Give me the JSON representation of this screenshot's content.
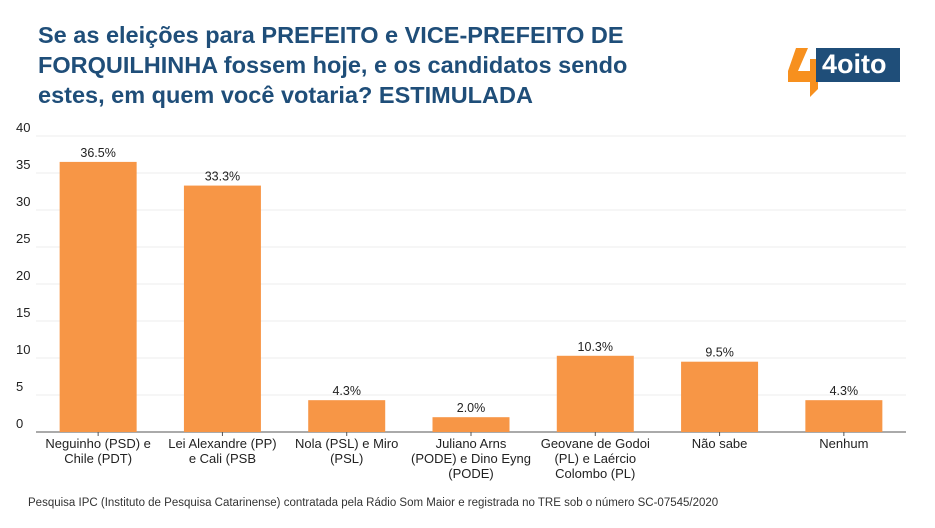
{
  "title_lines": [
    "Se as eleições para PREFEITO e VICE-PREFEITO DE",
    "FORQUILHINHA fossem hoje, e os candidatos sendo",
    "estes, em quem você votaria? ESTIMULADA"
  ],
  "logo": {
    "text": "4oito",
    "accent": "#f7901e",
    "brand": "#1f4e79"
  },
  "footer": "Pesquisa IPC (Instituto de Pesquisa Catarinense) contratada pela Rádio Som Maior e registrada no TRE sob o número SC-07545/2020",
  "colors": {
    "bar": "#f79646",
    "grid": "#eeeeee",
    "axis": "#555555",
    "text": "#222222"
  },
  "chart_data": {
    "type": "bar",
    "title": "Se as eleições para PREFEITO e VICE-PREFEITO DE FORQUILHINHA fossem hoje, e os candidatos sendo estes, em quem você votaria? ESTIMULADA",
    "categories": [
      [
        "Neguinho (PSD) e",
        "Chile (PDT)"
      ],
      [
        "Lei Alexandre (PP)",
        "e Cali (PSB"
      ],
      [
        "Nola (PSL) e Miro",
        "(PSL)"
      ],
      [
        "Juliano Arns",
        "(PODE) e Dino Eyng",
        "(PODE)"
      ],
      [
        "Geovane de Godoi",
        "(PL) e Laércio",
        "Colombo (PL)"
      ],
      [
        "Não sabe"
      ],
      [
        "Nenhum"
      ]
    ],
    "values": [
      36.5,
      33.3,
      4.3,
      2.0,
      10.3,
      9.5,
      4.3
    ],
    "data_labels": [
      "36.5%",
      "33.3%",
      "4.3%",
      "2.0%",
      "10.3%",
      "9.5%",
      "4.3%"
    ],
    "ylim": [
      0,
      40
    ],
    "yticks": [
      0,
      5,
      10,
      15,
      20,
      25,
      30,
      35,
      40
    ],
    "grid": true
  }
}
